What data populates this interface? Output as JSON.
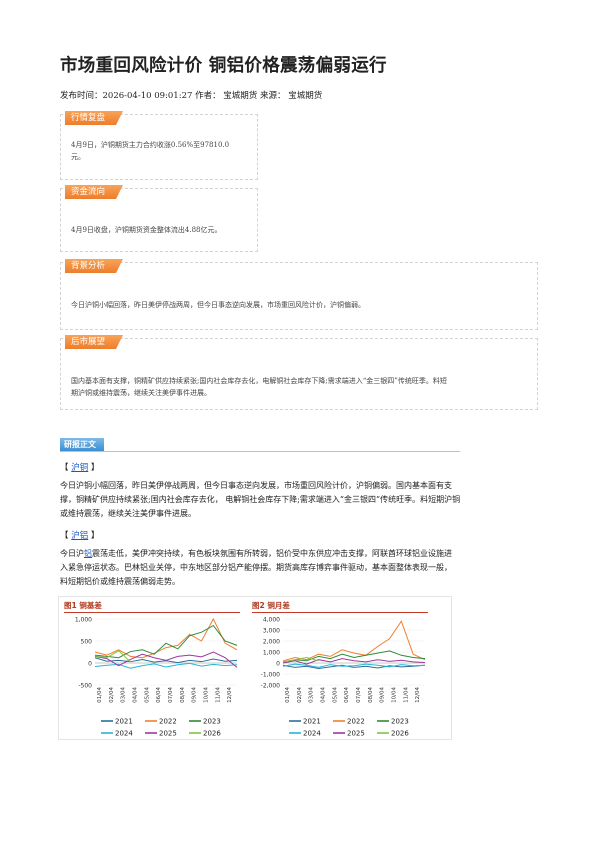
{
  "article": {
    "title": "市场重回风险计价 铜铝价格震荡偏弱运行",
    "meta": "发布时间：2026-04-10 09:01:27 作者：  宝城期货 来源：  宝城期货"
  },
  "summary_boxes": [
    {
      "tag": "行情复盘",
      "text_lines": [
        "4月9日，沪铜期货主力合约收涨0.56%至97810.0",
        "元。"
      ]
    },
    {
      "tag": "资金流向",
      "text_lines": [
        "4月9日收盘，沪铜期货资金整体流出4.88亿元。"
      ]
    },
    {
      "tag": "背景分析",
      "text_lines": [
        "今日沪铜小幅回落，昨日美伊停战两周，但今日事态逆向发展，市场重回风险计价，沪铜偏弱。"
      ]
    },
    {
      "tag": "后市展望",
      "text_lines": [
        "国内基本面有支撑，铜精矿供应持续紧张;国内社会库存去化，电解铜社会库存下降;需求端进入“金三银四”传统旺季。料短",
        "期沪铜或维持震荡，继续关注美伊事件进展。"
      ]
    }
  ],
  "report": {
    "section_label": "研报正文",
    "copper": {
      "bracket_open": "【 ",
      "name": "沪铜",
      "bracket_close": " 】",
      "lines": [
        "今日沪铜小幅回落，昨日美伊停战两周，但今日事态逆向发展，市场重回风险计价，沪铜偏弱。国内基本面有支",
        "撑，铜精矿供应持续紧张;国内社会库存去化， 电解铜社会库存下降;需求端进入“金三银四”传统旺季。料短期沪铜",
        "或维持震荡，继续关注美伊事件进展。"
      ]
    },
    "aluminum": {
      "bracket_open": "【 ",
      "name": "沪铝",
      "bracket_close": " 】",
      "line1_pre": "今日沪",
      "line1_link": "铝",
      "line1_post": "震荡走低，美伊冲突持续，有色板块氛围有所转弱，铝价受中东供应冲击支撑，阿联酋环球铝业设施进",
      "lines": [
        "入紧急停运状态。巴林铝业关停，中东地区部分铝产能停摆。期货高库存博弈事件驱动，基本面整体表现一般，",
        "料短期铝价或维持震荡偏弱走势。"
      ]
    }
  },
  "colors": {
    "2021": "#2a6f97",
    "2022": "#f07f2f",
    "2023": "#2e8b3a",
    "2024": "#27b5d8",
    "2025": "#a0369e",
    "2026": "#86c340",
    "tag": "#ee7d2a",
    "section": "#3a8fd3",
    "fig_rule": "#c43a2a"
  },
  "chart_data": [
    {
      "type": "line",
      "title": "图1  铜基差",
      "y_ticks": [
        "1,000",
        "500",
        "0",
        "-500"
      ],
      "ylim": [
        -500,
        1000
      ],
      "x_ticks": [
        "01/04",
        "02/04",
        "03/04",
        "04/04",
        "05/04",
        "06/04",
        "07/04",
        "08/04",
        "09/04",
        "10/04",
        "11/04",
        "12/04"
      ],
      "xlim": [
        0,
        12
      ],
      "legend": "bottom",
      "series": [
        {
          "name": "2021",
          "x": [
            0,
            1,
            2,
            3,
            4,
            5,
            6,
            7,
            8,
            9,
            10,
            11,
            12
          ],
          "values": [
            120,
            40,
            60,
            30,
            80,
            20,
            50,
            10,
            60,
            30,
            90,
            40,
            60
          ]
        },
        {
          "name": "2022",
          "x": [
            0,
            1,
            2,
            3,
            4,
            5,
            6,
            7,
            8,
            9,
            10,
            11,
            12
          ],
          "values": [
            250,
            180,
            300,
            150,
            120,
            220,
            350,
            400,
            650,
            500,
            1000,
            450,
            300
          ]
        },
        {
          "name": "2023",
          "x": [
            0,
            1,
            2,
            3,
            4,
            5,
            6,
            7,
            8,
            9,
            10,
            11,
            12
          ],
          "values": [
            180,
            150,
            120,
            260,
            300,
            200,
            450,
            320,
            620,
            700,
            850,
            500,
            400
          ]
        },
        {
          "name": "2024",
          "x": [
            0,
            1,
            2,
            3,
            4,
            5,
            6,
            7,
            8,
            9,
            10,
            11,
            12
          ],
          "values": [
            -80,
            -50,
            -30,
            -120,
            -60,
            -20,
            -90,
            -40,
            -10,
            -70,
            -30,
            -60,
            -40
          ]
        },
        {
          "name": "2025",
          "x": [
            0,
            1,
            2,
            3,
            4,
            5,
            6,
            7,
            8,
            9,
            10,
            11,
            12
          ],
          "values": [
            150,
            100,
            -60,
            80,
            200,
            120,
            60,
            150,
            180,
            140,
            250,
            120,
            -100
          ]
        },
        {
          "name": "2026",
          "x": [
            0,
            1,
            2,
            3
          ],
          "values": [
            160,
            120,
            280,
            20
          ]
        }
      ]
    },
    {
      "type": "line",
      "title": "图2  铜月差",
      "y_ticks": [
        "4,000",
        "3,000",
        "2,000",
        "1,000",
        "0",
        "-1,000",
        "-2,000"
      ],
      "ylim": [
        -2000,
        4000
      ],
      "x_ticks": [
        "01/04",
        "02/04",
        "03/04",
        "04/04",
        "05/04",
        "06/04",
        "07/04",
        "08/04",
        "09/04",
        "10/04",
        "11/04",
        "12/04"
      ],
      "xlim": [
        0,
        12
      ],
      "legend": "bottom",
      "series": [
        {
          "name": "2021",
          "x": [
            0,
            1,
            2,
            3,
            4,
            5,
            6,
            7,
            8,
            9,
            10,
            11,
            12
          ],
          "values": [
            -200,
            -400,
            -300,
            -500,
            -350,
            -200,
            -400,
            -300,
            -450,
            -250,
            -350,
            -300,
            -200
          ]
        },
        {
          "name": "2022",
          "x": [
            0,
            1,
            2,
            3,
            4,
            5,
            6,
            7,
            8,
            9,
            10,
            11,
            12
          ],
          "values": [
            200,
            500,
            300,
            800,
            600,
            1200,
            900,
            700,
            1500,
            2200,
            3800,
            800,
            300
          ]
        },
        {
          "name": "2023",
          "x": [
            0,
            1,
            2,
            3,
            4,
            5,
            6,
            7,
            8,
            9,
            10,
            11,
            12
          ],
          "values": [
            100,
            300,
            200,
            600,
            400,
            800,
            500,
            700,
            900,
            1100,
            700,
            500,
            400
          ]
        },
        {
          "name": "2024",
          "x": [
            0,
            1,
            2,
            3,
            4,
            5,
            6,
            7,
            8,
            9,
            10,
            11,
            12
          ],
          "values": [
            -300,
            -100,
            -200,
            -400,
            -150,
            -300,
            -250,
            -100,
            -200,
            -350,
            -150,
            -250,
            -200
          ]
        },
        {
          "name": "2025",
          "x": [
            0,
            1,
            2,
            3,
            4,
            5,
            6,
            7,
            8,
            9,
            10,
            11,
            12
          ],
          "values": [
            0,
            200,
            -100,
            300,
            100,
            400,
            200,
            100,
            300,
            150,
            250,
            100,
            50
          ]
        },
        {
          "name": "2026",
          "x": [
            0,
            1,
            2,
            3
          ],
          "values": [
            100,
            300,
            500,
            200
          ]
        }
      ]
    }
  ]
}
